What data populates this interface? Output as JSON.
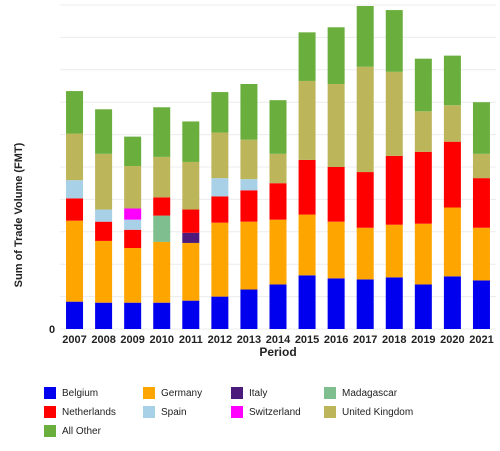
{
  "chart_data": {
    "type": "bar",
    "stacked": true,
    "xlabel": "Period",
    "ylabel": "Sum of Trade Volume (FMT)",
    "categories": [
      "2007",
      "2008",
      "2009",
      "2010",
      "2011",
      "2012",
      "2013",
      "2014",
      "2015",
      "2016",
      "2017",
      "2018",
      "2019",
      "2020",
      "2021"
    ],
    "y_ticks": [
      "0"
    ],
    "ylim": [
      0,
      320
    ],
    "grid": true,
    "legend_position": "bottom",
    "series": [
      {
        "name": "Belgium",
        "color": "#0000ee",
        "values": [
          27,
          26,
          26,
          26,
          28,
          32,
          39,
          44,
          53,
          50,
          49,
          51,
          44,
          52,
          48
        ]
      },
      {
        "name": "Germany",
        "color": "#ffa500",
        "values": [
          80,
          61,
          54,
          60,
          57,
          73,
          67,
          64,
          60,
          56,
          51,
          52,
          60,
          68,
          52
        ]
      },
      {
        "name": "Italy",
        "color": "#4b1a7a",
        "values": [
          0,
          0,
          0,
          0,
          10,
          0,
          0,
          0,
          0,
          0,
          0,
          0,
          0,
          0,
          0
        ]
      },
      {
        "name": "Madagascar",
        "color": "#7fbf8f",
        "values": [
          0,
          0,
          0,
          26,
          0,
          0,
          0,
          0,
          0,
          0,
          0,
          0,
          0,
          0,
          0
        ]
      },
      {
        "name": "Netherlands",
        "color": "#ff0000",
        "values": [
          22,
          19,
          18,
          18,
          23,
          26,
          31,
          36,
          54,
          54,
          55,
          68,
          71,
          65,
          49
        ]
      },
      {
        "name": "Spain",
        "color": "#a8d0e6",
        "values": [
          18,
          12,
          10,
          0,
          0,
          18,
          11,
          0,
          0,
          0,
          0,
          0,
          0,
          0,
          0
        ]
      },
      {
        "name": "Switzerland",
        "color": "#ff00ff",
        "values": [
          0,
          0,
          11,
          0,
          0,
          0,
          0,
          0,
          0,
          0,
          0,
          0,
          0,
          0,
          0
        ]
      },
      {
        "name": "United Kingdom",
        "color": "#bdb55a",
        "values": [
          46,
          55,
          42,
          40,
          47,
          45,
          39,
          29,
          78,
          82,
          104,
          83,
          40,
          36,
          24
        ]
      },
      {
        "name": "All Other",
        "color": "#6aaf3d",
        "values": [
          42,
          44,
          29,
          49,
          40,
          40,
          55,
          53,
          48,
          56,
          60,
          61,
          52,
          49,
          51
        ]
      }
    ]
  },
  "legend": {
    "items": [
      {
        "label": "Belgium",
        "color": "#0000ee"
      },
      {
        "label": "Germany",
        "color": "#ffa500"
      },
      {
        "label": "Italy",
        "color": "#4b1a7a"
      },
      {
        "label": "Madagascar",
        "color": "#7fbf8f"
      },
      {
        "label": "Netherlands",
        "color": "#ff0000"
      },
      {
        "label": "Spain",
        "color": "#a8d0e6"
      },
      {
        "label": "Switzerland",
        "color": "#ff00ff"
      },
      {
        "label": "United Kingdom",
        "color": "#bdb55a"
      },
      {
        "label": "All Other",
        "color": "#6aaf3d"
      }
    ]
  }
}
